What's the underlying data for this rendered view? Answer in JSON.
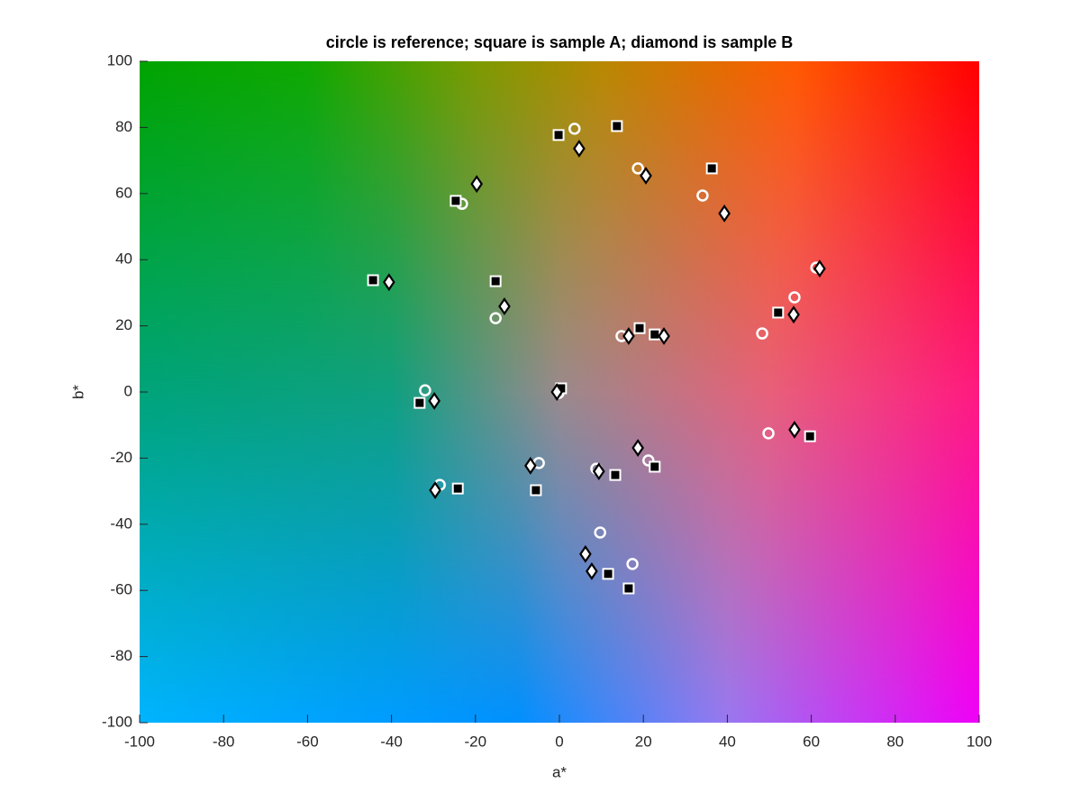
{
  "chart_data": {
    "type": "scatter",
    "title": "circle is reference; square is sample A; diamond is sample B",
    "xlabel": "a*",
    "ylabel": "b*",
    "xlim": [
      -100,
      100
    ],
    "ylim": [
      -100,
      100
    ],
    "xticks": [
      -100,
      -80,
      -60,
      -40,
      -20,
      0,
      20,
      40,
      60,
      80,
      100
    ],
    "yticks": [
      -100,
      -80,
      -60,
      -40,
      -20,
      0,
      20,
      40,
      60,
      80,
      100
    ],
    "series": [
      {
        "marker": "circle",
        "color": "#ffffff",
        "x": [
          3.6,
          18.7,
          34.1,
          -23.2,
          61.2,
          56.0,
          -15.2,
          14.8,
          48.3,
          -32.0,
          -0.2,
          49.8,
          -4.9,
          21.2,
          -28.5,
          8.8,
          9.7,
          17.4
        ],
        "values": [
          79.6,
          67.6,
          59.4,
          56.9,
          37.6,
          28.6,
          22.3,
          16.9,
          17.7,
          0.5,
          -0.3,
          -12.5,
          -21.5,
          -20.7,
          -28.1,
          -23.2,
          -42.5,
          -52.0
        ]
      },
      {
        "marker": "square",
        "color": "#000000",
        "x": [
          -0.2,
          13.7,
          36.3,
          -24.7,
          -44.4,
          -15.2,
          52.1,
          19.1,
          22.7,
          -33.3,
          0.4,
          59.7,
          22.7,
          13.3,
          -24.2,
          -5.6,
          11.6,
          16.5
        ],
        "values": [
          77.7,
          80.4,
          67.6,
          57.8,
          33.8,
          33.5,
          24.0,
          19.3,
          17.4,
          -3.3,
          1.1,
          -13.4,
          -22.6,
          -25.1,
          -29.2,
          -29.7,
          -55.0,
          -59.4
        ]
      },
      {
        "marker": "diamond",
        "color": "#ffffff",
        "x": [
          4.7,
          20.6,
          -19.7,
          39.3,
          62.0,
          -40.6,
          -13.1,
          16.5,
          24.9,
          55.8,
          -0.6,
          -29.8,
          56.0,
          18.7,
          -6.9,
          9.4,
          -29.6,
          6.2,
          7.7
        ],
        "values": [
          73.6,
          65.4,
          62.9,
          54.0,
          37.3,
          33.2,
          25.9,
          16.9,
          16.9,
          23.4,
          0.0,
          -2.7,
          -11.4,
          -16.9,
          -22.3,
          -24.0,
          -29.7,
          -49.0,
          -54.2
        ]
      }
    ]
  }
}
